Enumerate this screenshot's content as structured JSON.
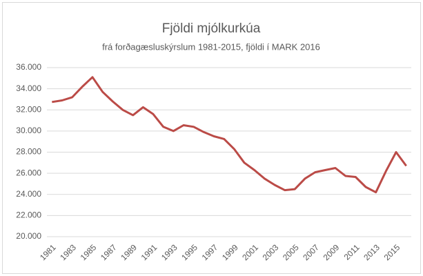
{
  "chart_data": {
    "type": "line",
    "title": "Fjöldi mjólkurkúa",
    "subtitle": "frá forðagæsluskýrslum 1981-2015, fjöldi í MARK 2016",
    "categories": [
      "1981",
      null,
      "1983",
      null,
      "1985",
      null,
      "1987",
      null,
      "1989",
      null,
      "1991",
      null,
      "1993",
      null,
      "1995",
      null,
      "1997",
      null,
      "1999",
      null,
      "2001",
      null,
      "2003",
      null,
      "2005",
      null,
      "2007",
      null,
      "2009",
      null,
      "2011",
      null,
      "2013",
      null,
      "2015",
      null
    ],
    "series": [
      {
        "color": "#bb4b47",
        "values": [
          32750,
          32900,
          33200,
          34200,
          35100,
          33700,
          32800,
          32000,
          31500,
          32250,
          31600,
          30400,
          30000,
          30550,
          30400,
          29900,
          29500,
          29250,
          28300,
          27000,
          26300,
          25500,
          24900,
          24400,
          24500,
          25500,
          26100,
          26300,
          26500,
          25750,
          25650,
          24700,
          24200,
          26200,
          28000,
          26700
        ]
      }
    ],
    "ylim": [
      20000,
      36000
    ],
    "yticks": [
      {
        "value": 20000,
        "label": "20.000"
      },
      {
        "value": 22000,
        "label": "22.000"
      },
      {
        "value": 24000,
        "label": "24.000"
      },
      {
        "value": 26000,
        "label": "26.000"
      },
      {
        "value": 28000,
        "label": "28.000"
      },
      {
        "value": 30000,
        "label": "30.000"
      },
      {
        "value": 32000,
        "label": "32.000"
      },
      {
        "value": 34000,
        "label": "34.000"
      },
      {
        "value": 36000,
        "label": "36.000"
      }
    ],
    "grid": true
  }
}
